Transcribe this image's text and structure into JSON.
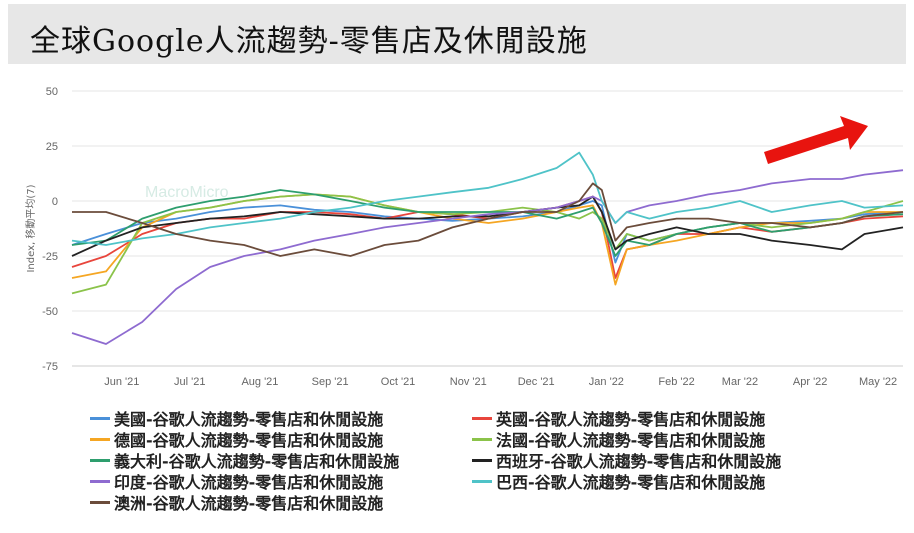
{
  "header": {
    "title": "全球Google人流趨勢-零售店及休閒設施"
  },
  "watermark": "MacroMicro",
  "chart_data": {
    "type": "line",
    "ylabel": "Index, 移動平均(7)",
    "ylim": [
      -75,
      50
    ],
    "yticks": [
      50,
      25,
      0,
      -25,
      -50,
      -75
    ],
    "xlim": [
      "2021-05-10",
      "2022-05-12"
    ],
    "xticks": [
      {
        "label": "Jun '21",
        "date": "2021-06-01"
      },
      {
        "label": "Jul '21",
        "date": "2021-07-01"
      },
      {
        "label": "Aug '21",
        "date": "2021-08-01"
      },
      {
        "label": "Sep '21",
        "date": "2021-09-01"
      },
      {
        "label": "Oct '21",
        "date": "2021-10-01"
      },
      {
        "label": "Nov '21",
        "date": "2021-11-01"
      },
      {
        "label": "Dec '21",
        "date": "2021-12-01"
      },
      {
        "label": "Jan '22",
        "date": "2022-01-01"
      },
      {
        "label": "Feb '22",
        "date": "2022-02-01"
      },
      {
        "label": "Mar '22",
        "date": "2022-03-01"
      },
      {
        "label": "Apr '22",
        "date": "2022-04-01"
      },
      {
        "label": "May '22",
        "date": "2022-05-01"
      }
    ],
    "x": [
      "2021-05-10",
      "2021-05-25",
      "2021-06-10",
      "2021-06-25",
      "2021-07-10",
      "2021-07-25",
      "2021-08-10",
      "2021-08-25",
      "2021-09-10",
      "2021-09-25",
      "2021-10-10",
      "2021-10-25",
      "2021-11-10",
      "2021-11-25",
      "2021-12-10",
      "2021-12-20",
      "2021-12-26",
      "2021-12-30",
      "2022-01-05",
      "2022-01-10",
      "2022-01-20",
      "2022-02-01",
      "2022-02-15",
      "2022-03-01",
      "2022-03-15",
      "2022-04-01",
      "2022-04-15",
      "2022-04-25",
      "2022-05-12"
    ],
    "series": [
      {
        "name": "美國-谷歌人流趨勢-零售店和休閒設施",
        "color": "#4a90d9",
        "values": [
          -20,
          -15,
          -10,
          -8,
          -5,
          -3,
          -2,
          -4,
          -5,
          -7,
          -8,
          -9,
          -8,
          -7,
          -5,
          -2,
          0,
          -2,
          -28,
          -15,
          -18,
          -15,
          -12,
          -10,
          -10,
          -9,
          -8,
          -6,
          -5
        ]
      },
      {
        "name": "英國-谷歌人流趨勢-零售店和休閒設施",
        "color": "#e8453c",
        "values": [
          -30,
          -25,
          -15,
          -10,
          -8,
          -8,
          -5,
          -5,
          -6,
          -8,
          -5,
          -6,
          -8,
          -5,
          -3,
          0,
          2,
          -5,
          -35,
          -22,
          -20,
          -15,
          -15,
          -12,
          -14,
          -12,
          -10,
          -8,
          -7
        ]
      },
      {
        "name": "德國-谷歌人流趨勢-零售店和休閒設施",
        "color": "#f5a623",
        "values": [
          -35,
          -32,
          -12,
          -5,
          -3,
          0,
          2,
          3,
          2,
          -2,
          -5,
          -8,
          -10,
          -8,
          -5,
          -3,
          -2,
          -10,
          -38,
          -22,
          -20,
          -18,
          -15,
          -12,
          -10,
          -10,
          -8,
          -5,
          -5
        ]
      },
      {
        "name": "法國-谷歌人流趨勢-零售店和休閒設施",
        "color": "#8bc34a",
        "values": [
          -42,
          -38,
          -10,
          -5,
          -3,
          0,
          2,
          3,
          2,
          -2,
          -5,
          -6,
          -5,
          -3,
          -5,
          -8,
          -5,
          -8,
          -22,
          -15,
          -18,
          -15,
          -12,
          -10,
          -12,
          -10,
          -8,
          -5,
          0
        ]
      },
      {
        "name": "義大利-谷歌人流趨勢-零售店和休閒設施",
        "color": "#2e9e6e",
        "values": [
          -20,
          -18,
          -8,
          -3,
          0,
          2,
          5,
          3,
          0,
          -3,
          -5,
          -5,
          -5,
          -5,
          -8,
          -5,
          -3,
          -10,
          -25,
          -18,
          -20,
          -15,
          -12,
          -10,
          -14,
          -12,
          -10,
          -7,
          -6
        ]
      },
      {
        "name": "西班牙-谷歌人流趨勢-零售店和休閒設施",
        "color": "#222222",
        "values": [
          -25,
          -18,
          -12,
          -10,
          -8,
          -7,
          -5,
          -6,
          -7,
          -8,
          -8,
          -7,
          -7,
          -5,
          -3,
          -2,
          2,
          -5,
          -22,
          -18,
          -15,
          -12,
          -15,
          -15,
          -18,
          -20,
          -22,
          -15,
          -12
        ]
      },
      {
        "name": "印度-谷歌人流趨勢-零售店和休閒設施",
        "color": "#8e6bd0",
        "values": [
          -60,
          -65,
          -55,
          -40,
          -30,
          -25,
          -22,
          -18,
          -15,
          -12,
          -10,
          -8,
          -6,
          -5,
          -3,
          0,
          2,
          0,
          -10,
          -5,
          -2,
          0,
          3,
          5,
          8,
          10,
          10,
          12,
          14
        ]
      },
      {
        "name": "巴西-谷歌人流趨勢-零售店和休閒設施",
        "color": "#4fc3c8",
        "values": [
          -18,
          -20,
          -17,
          -15,
          -12,
          -10,
          -8,
          -5,
          -3,
          0,
          2,
          4,
          6,
          10,
          15,
          22,
          12,
          0,
          -10,
          -5,
          -8,
          -5,
          -3,
          0,
          -5,
          -2,
          0,
          -3,
          -2
        ]
      },
      {
        "name": "澳洲-谷歌人流趨勢-零售店和休閒設施",
        "color": "#6b4c3b",
        "values": [
          -5,
          -5,
          -10,
          -15,
          -18,
          -20,
          -25,
          -22,
          -25,
          -20,
          -18,
          -12,
          -8,
          -5,
          -5,
          0,
          8,
          5,
          -18,
          -12,
          -10,
          -8,
          -8,
          -10,
          -10,
          -12,
          -10,
          -7,
          -5
        ]
      }
    ]
  }
}
